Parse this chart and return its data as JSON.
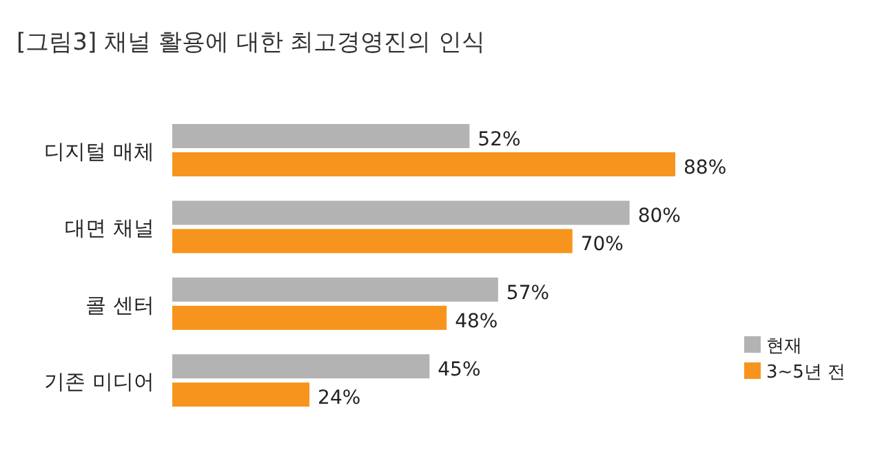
{
  "chart_data": {
    "type": "bar",
    "orientation": "horizontal",
    "title": "[그림3] 채널 활용에 대한 최고경영진의 인식",
    "categories": [
      "디지털 매체",
      "대면 채널",
      "콜 센터",
      "기존 미디어"
    ],
    "series": [
      {
        "name": "현재",
        "color": "#b3b3b3",
        "values": [
          52,
          80,
          57,
          45
        ],
        "value_labels": [
          "52%",
          "80%",
          "57%",
          "45%"
        ]
      },
      {
        "name": "3~5년 전",
        "color": "#f7941d",
        "values": [
          88,
          70,
          48,
          24
        ],
        "value_labels": [
          "88%",
          "70%",
          "48%",
          "24%"
        ]
      }
    ],
    "legend": "bottom right"
  }
}
